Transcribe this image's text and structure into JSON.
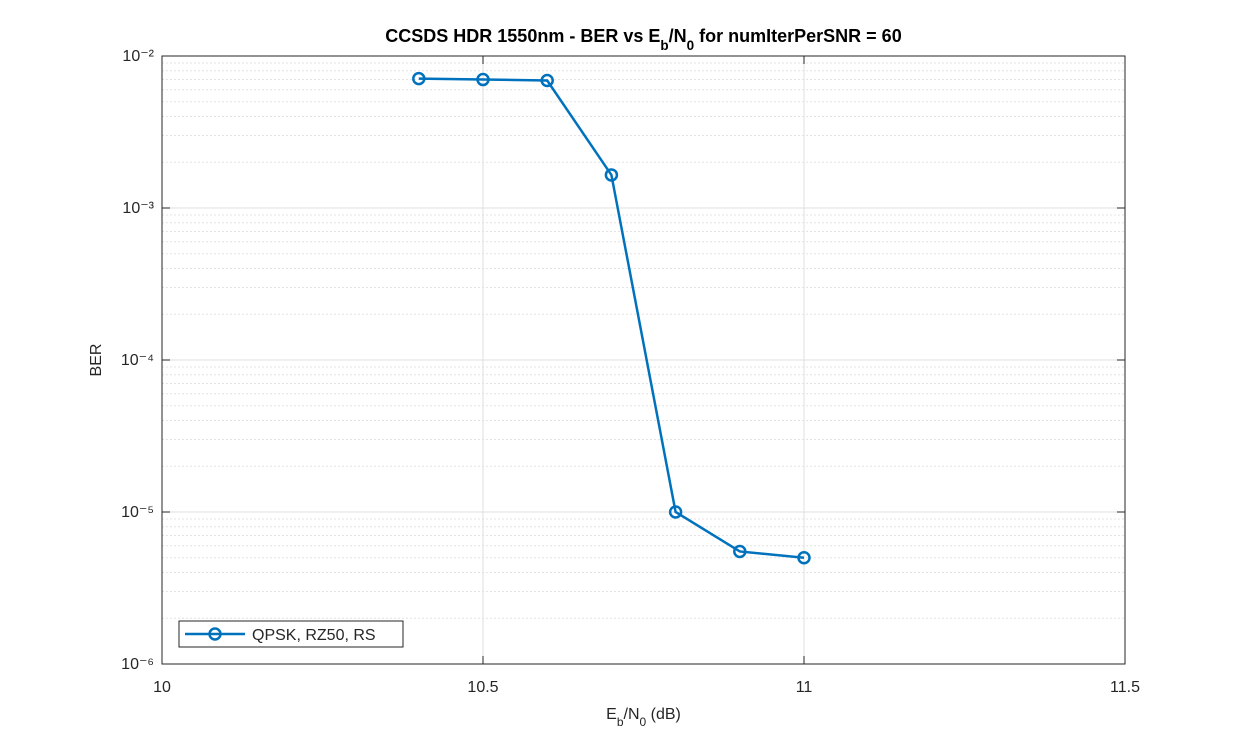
{
  "chart_data": {
    "type": "line",
    "title": [
      "CCSDS HDR 1550nm - BER vs E",
      "b",
      "/N",
      "0",
      " for numIterPerSNR = 60"
    ],
    "xlabel": [
      "E",
      "b",
      "/N",
      "0",
      " (dB)"
    ],
    "ylabel": "BER",
    "x": [
      10.4,
      10.5,
      10.6,
      10.7,
      10.8,
      10.9,
      11
    ],
    "series": [
      {
        "name": "QPSK, RZ50, RS",
        "color": "#0072bd",
        "values": [
          0.0071,
          0.007,
          0.0069,
          0.00165,
          1e-05,
          5.5e-06,
          5e-06
        ]
      }
    ],
    "xlim": [
      10,
      11.5
    ],
    "xticks": [
      10,
      10.5,
      11,
      11.5
    ],
    "ylim": [
      1e-06,
      0.01
    ],
    "yticks": [
      {
        "value": 1e-06,
        "label": "10⁻⁶"
      },
      {
        "value": 1e-05,
        "label": "10⁻⁵"
      },
      {
        "value": 0.0001,
        "label": "10⁻⁴"
      },
      {
        "value": 0.001,
        "label": "10⁻³"
      },
      {
        "value": 0.01,
        "label": "10⁻²"
      }
    ],
    "ylog": true,
    "grid": true,
    "minor_grid": true,
    "legend": "lower left"
  }
}
